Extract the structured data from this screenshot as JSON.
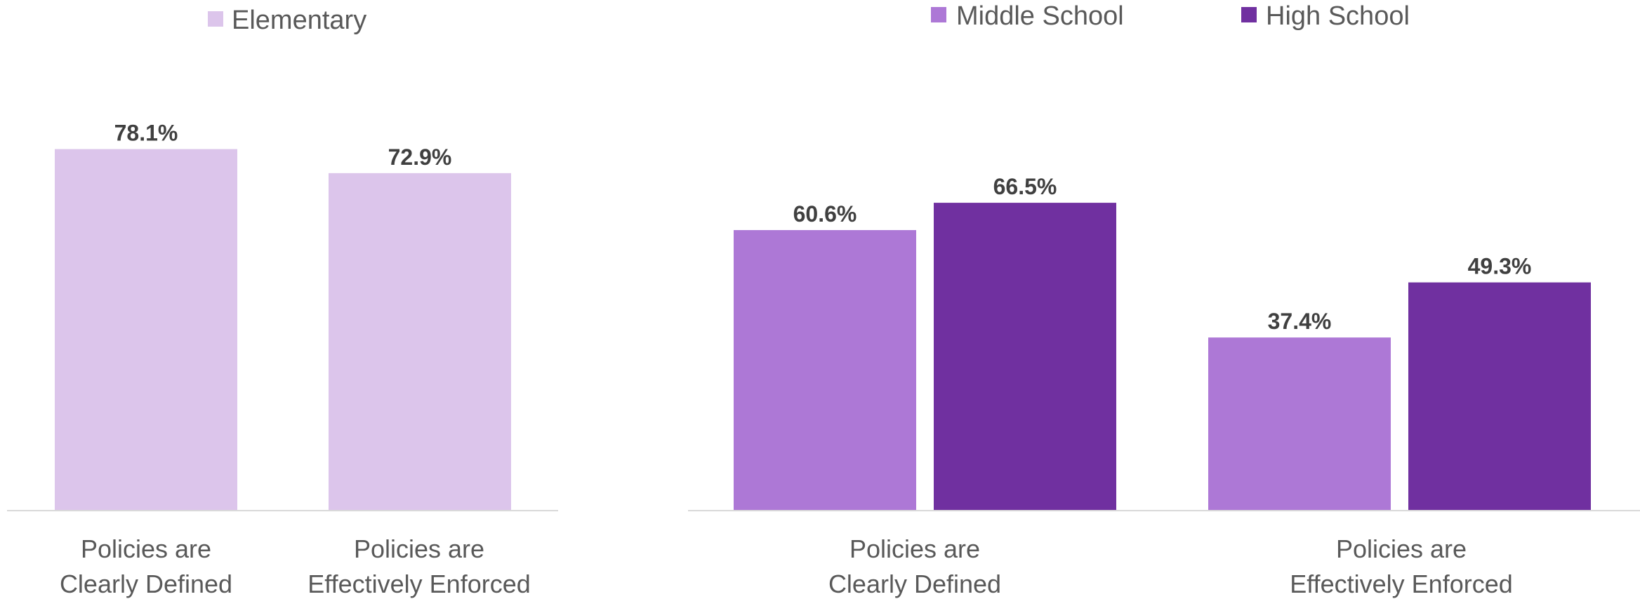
{
  "chart_data": [
    {
      "type": "bar",
      "categories": [
        "Policies are Clearly Defined",
        "Policies are Effectively  Enforced"
      ],
      "category_lines": [
        [
          "Policies are",
          "Clearly Defined"
        ],
        [
          "Policies are",
          "Effectively  Enforced"
        ]
      ],
      "series": [
        {
          "name": "Elementary",
          "color": "#dcc5eb",
          "values": [
            78.1,
            72.9
          ],
          "labels": [
            "78.1%",
            "72.9%"
          ]
        }
      ],
      "ylim": [
        0,
        100
      ],
      "grid": false,
      "legend_position": "top"
    },
    {
      "type": "bar",
      "categories": [
        "Policies are Clearly Defined",
        "Policies are Effectively  Enforced"
      ],
      "category_lines": [
        [
          "Policies are",
          "Clearly Defined"
        ],
        [
          "Policies are",
          "Effectively  Enforced"
        ]
      ],
      "series": [
        {
          "name": "Middle School",
          "color": "#ad78d6",
          "values": [
            60.6,
            37.4
          ],
          "labels": [
            "60.6%",
            "37.4%"
          ]
        },
        {
          "name": "High School",
          "color": "#7030a0",
          "values": [
            66.5,
            49.3
          ],
          "labels": [
            "66.5%",
            "49.3%"
          ]
        }
      ],
      "ylim": [
        0,
        100
      ],
      "grid": false,
      "legend_position": "top"
    }
  ]
}
